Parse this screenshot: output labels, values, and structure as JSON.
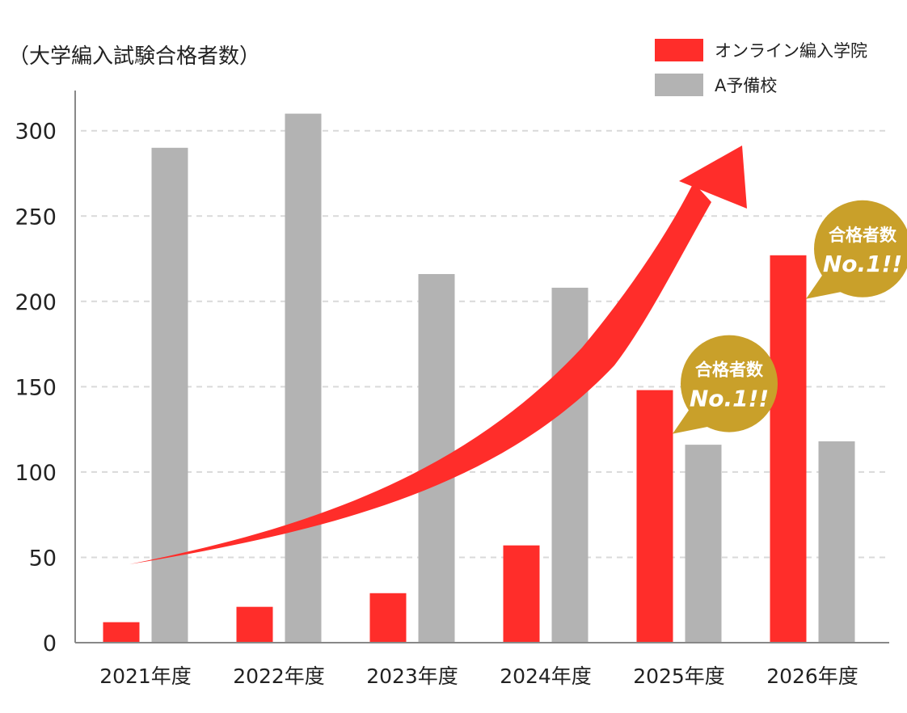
{
  "chart_data": {
    "type": "bar",
    "ylabel": "（大学編入試験合格者数）",
    "categories": [
      "2021年度",
      "2022年度",
      "2023年度",
      "2024年度",
      "2025年度",
      "2026年度"
    ],
    "ylim": [
      0,
      320
    ],
    "yticks": [
      0,
      50,
      100,
      150,
      200,
      250,
      300
    ],
    "grid": true,
    "legend": "top-right",
    "series": [
      {
        "name": "オンライン編入学院",
        "color": "#ff2d2a",
        "values": [
          12,
          21,
          29,
          57,
          148,
          227
        ]
      },
      {
        "name": "A予備校",
        "color": "#b3b3b3",
        "values": [
          290,
          310,
          216,
          208,
          116,
          118
        ]
      }
    ],
    "annotations": [
      {
        "category": "2025年度",
        "line1": "合格者数",
        "line2": "No.1!!",
        "color": "#c9a02a"
      },
      {
        "category": "2026年度",
        "line1": "合格者数",
        "line2": "No.1!!",
        "color": "#c9a02a"
      }
    ],
    "trend_arrow": {
      "color": "#ff2d2a"
    }
  }
}
